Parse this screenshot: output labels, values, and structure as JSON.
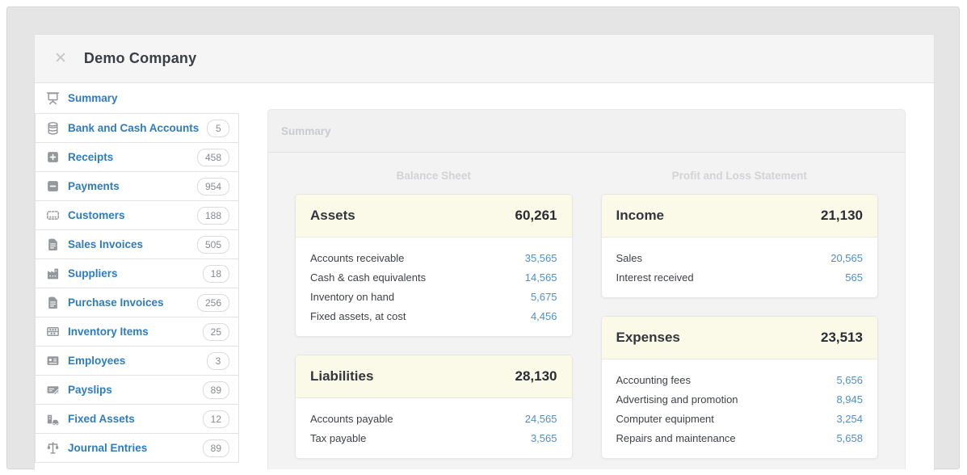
{
  "header": {
    "title": "Demo Company",
    "close_glyph": "✕"
  },
  "sidebar": {
    "items": [
      {
        "label": "Summary",
        "icon": "presentation-icon",
        "count": null
      },
      {
        "label": "Bank and Cash Accounts",
        "icon": "coins-icon",
        "count": "5"
      },
      {
        "label": "Receipts",
        "icon": "plus-square-icon",
        "count": "458"
      },
      {
        "label": "Payments",
        "icon": "minus-square-icon",
        "count": "954"
      },
      {
        "label": "Customers",
        "icon": "people-icon",
        "count": "188"
      },
      {
        "label": "Sales Invoices",
        "icon": "invoice-icon",
        "count": "505"
      },
      {
        "label": "Suppliers",
        "icon": "building-icon",
        "count": "18"
      },
      {
        "label": "Purchase Invoices",
        "icon": "invoice-icon",
        "count": "256"
      },
      {
        "label": "Inventory Items",
        "icon": "abacus-icon",
        "count": "25"
      },
      {
        "label": "Employees",
        "icon": "id-card-icon",
        "count": "3"
      },
      {
        "label": "Payslips",
        "icon": "payslip-icon",
        "count": "89"
      },
      {
        "label": "Fixed Assets",
        "icon": "fixed-asset-icon",
        "count": "12"
      },
      {
        "label": "Journal Entries",
        "icon": "scales-icon",
        "count": "89"
      }
    ]
  },
  "main": {
    "tab_label": "Summary",
    "columns": [
      {
        "heading": "Balance Sheet",
        "cards": [
          {
            "title": "Assets",
            "total": "60,261",
            "rows": [
              {
                "label": "Accounts receivable",
                "value": "35,565"
              },
              {
                "label": "Cash & cash equivalents",
                "value": "14,565"
              },
              {
                "label": "Inventory on hand",
                "value": "5,675"
              },
              {
                "label": "Fixed assets, at cost",
                "value": "4,456"
              }
            ]
          },
          {
            "title": "Liabilities",
            "total": "28,130",
            "rows": [
              {
                "label": "Accounts payable",
                "value": "24,565"
              },
              {
                "label": "Tax payable",
                "value": "3,565"
              }
            ]
          }
        ]
      },
      {
        "heading": "Profit and Loss Statement",
        "cards": [
          {
            "title": "Income",
            "total": "21,130",
            "rows": [
              {
                "label": "Sales",
                "value": "20,565"
              },
              {
                "label": "Interest received",
                "value": "565"
              }
            ]
          },
          {
            "title": "Expenses",
            "total": "23,513",
            "rows": [
              {
                "label": "Accounting fees",
                "value": "5,656"
              },
              {
                "label": "Advertising and promotion",
                "value": "8,945"
              },
              {
                "label": "Computer equipment",
                "value": "3,254"
              },
              {
                "label": "Repairs and maintenance",
                "value": "5,658"
              }
            ]
          }
        ]
      }
    ]
  },
  "colors": {
    "sidebar_link_blue": "#2e7cbe",
    "account_value_blue": "#4e8fc7",
    "card_header_yellow": "#fbfae8",
    "page_background_gray": "#e5e5e6"
  }
}
